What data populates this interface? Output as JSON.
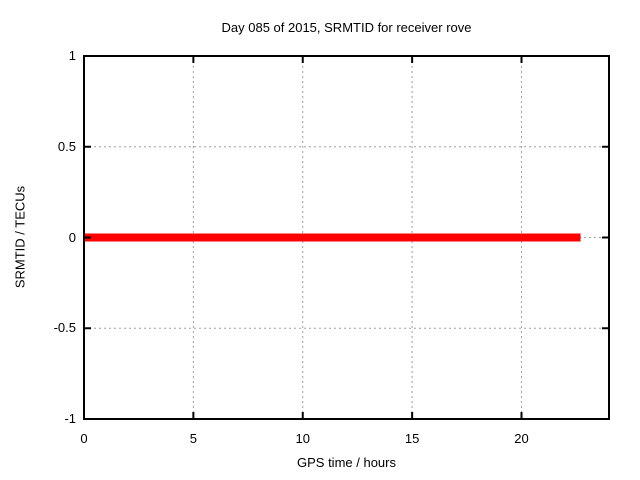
{
  "chart_data": {
    "type": "line",
    "title": "Day 085 of 2015, SRMTID for receiver rove",
    "xlabel": "GPS time / hours",
    "ylabel": "SRMTID / TECUs",
    "xlim": [
      0,
      24
    ],
    "ylim": [
      -1,
      1
    ],
    "xticks": [
      0,
      5,
      10,
      15,
      20
    ],
    "yticks": [
      -1,
      -0.5,
      0,
      0.5,
      1
    ],
    "grid": true,
    "legend": "none",
    "colors": {
      "background": "#ffffff",
      "axis": "#000000",
      "grid": "#a0a0a0",
      "series_red": "#ff0000"
    },
    "series": [
      {
        "name": "SRMTID",
        "color": "#ff0000",
        "linewidth": 8,
        "x": [
          0,
          22.7
        ],
        "y": [
          0,
          0
        ]
      }
    ]
  }
}
